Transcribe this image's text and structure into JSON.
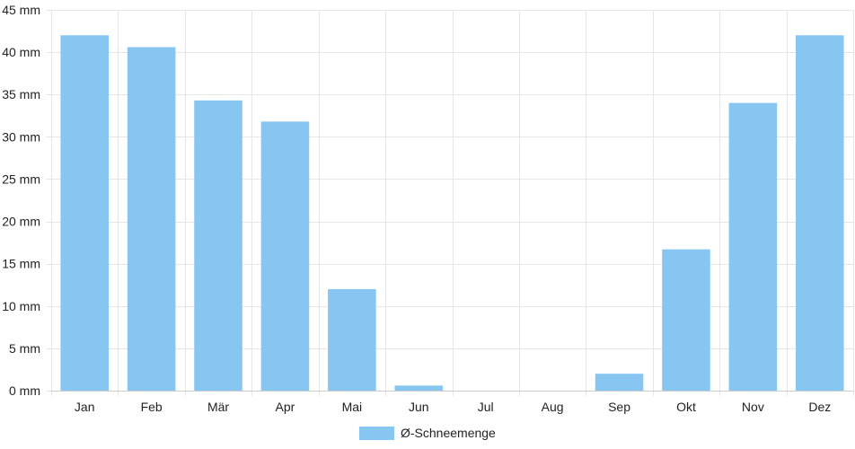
{
  "chart_data": {
    "type": "bar",
    "categories": [
      "Jan",
      "Feb",
      "Mär",
      "Apr",
      "Mai",
      "Jun",
      "Jul",
      "Aug",
      "Sep",
      "Okt",
      "Nov",
      "Dez"
    ],
    "series": [
      {
        "name": "Ø-Schneemenge",
        "values": [
          42,
          40.6,
          34.3,
          31.8,
          12,
          0.6,
          0,
          0,
          2,
          16.7,
          34,
          42
        ],
        "color": "#88c6f2"
      }
    ],
    "unit": "mm",
    "ylim": [
      0,
      45
    ],
    "yticks": [
      0,
      5,
      10,
      15,
      20,
      25,
      30,
      35,
      40,
      45
    ],
    "ytick_labels": [
      "0 mm",
      "5 mm",
      "10 mm",
      "15 mm",
      "20 mm",
      "25 mm",
      "30 mm",
      "35 mm",
      "40 mm",
      "45 mm"
    ],
    "grid": true,
    "legend_position": "bottom-center",
    "colors": {
      "grid": "#e6e6e6",
      "axis": "#cccccc",
      "text": "#222222"
    }
  }
}
